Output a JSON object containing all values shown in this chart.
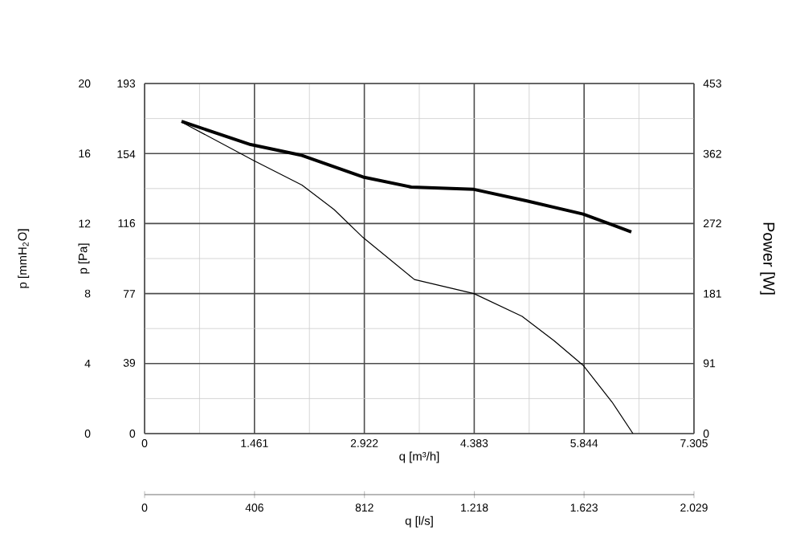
{
  "chart_data": {
    "type": "line",
    "xlabel": "q [m³/h]",
    "ylabel": "p [mmH$_{2}$O]",
    "y3label": "p [Pa]",
    "y2label": "Power [W]",
    "x2label": "q [l/s]",
    "xlim": [
      0,
      7305
    ],
    "xticks": [
      0,
      {
        "value": 1461,
        "label": "1.461"
      },
      {
        "value": 2922,
        "label": "2.922"
      },
      {
        "value": 4383,
        "label": "4.383"
      },
      {
        "value": 5844,
        "label": "5.844"
      },
      {
        "value": 7305,
        "label": "7.305"
      }
    ],
    "x2lim": [
      0,
      2029
    ],
    "x2ticks": [
      0,
      406,
      812,
      {
        "value": 1218,
        "label": "1.218"
      },
      {
        "value": 1623,
        "label": "1.623"
      },
      {
        "value": 2029,
        "label": "2.029"
      }
    ],
    "ylim": [
      0,
      20
    ],
    "yticks": [
      0,
      4,
      8,
      12,
      16,
      20
    ],
    "y3lim": [
      0,
      193
    ],
    "y3ticks": [
      0,
      39,
      77,
      116,
      154,
      193
    ],
    "y2lim": [
      0,
      453
    ],
    "y2ticks": [
      0,
      91,
      181,
      272,
      362,
      453
    ],
    "grid": true,
    "series": [
      {
        "color": "#000000",
        "x": [
          491,
          1452,
          2093,
          2520,
          2905,
          3588,
          4379,
          5020,
          5447,
          5831,
          6216,
          6494
        ],
        "values": [
          17.8,
          15.6,
          14.2,
          12.8,
          11.2,
          8.8,
          8.0,
          6.7,
          5.3,
          3.9,
          1.8,
          0
        ]
      },
      {
        "color": "#000000",
        "axis": "y2",
        "x": [
          491,
          1410,
          2093,
          2905,
          3546,
          4379,
          5084,
          5831,
          6472
        ],
        "values": [
          404,
          374,
          360,
          332,
          319,
          316,
          301,
          284,
          261
        ]
      }
    ]
  }
}
